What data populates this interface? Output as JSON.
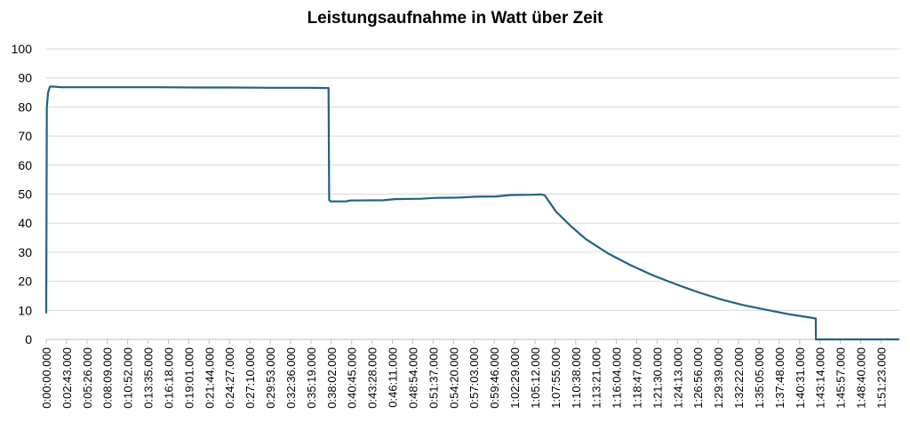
{
  "chart_data": {
    "type": "line",
    "title": "Leistungsaufnahme in Watt über Zeit",
    "xlabel": "",
    "ylabel": "",
    "ylim": [
      0,
      100
    ],
    "yticks": [
      0,
      10,
      20,
      30,
      40,
      50,
      60,
      70,
      80,
      90,
      100
    ],
    "x_tick_labels": [
      "0:00:00.000",
      "0:02:43.000",
      "0:05:26.000",
      "0:08:09.000",
      "0:10:52.000",
      "0:13:35.000",
      "0:16:18.000",
      "0:19:01.000",
      "0:21:44.000",
      "0:24:27.000",
      "0:27:10.000",
      "0:29:53.000",
      "0:32:36.000",
      "0:35:19.000",
      "0:38:02.000",
      "0:40:45.000",
      "0:43:28.000",
      "0:46:11.000",
      "0:48:54.000",
      "0:51:37.000",
      "0:54:20.000",
      "0:57:03.000",
      "0:59:46.000",
      "1:02:29.000",
      "1:05:12.000",
      "1:07:55.000",
      "1:10:38.000",
      "1:13:21.000",
      "1:16:04.000",
      "1:18:47.000",
      "1:21:30.000",
      "1:24:13.000",
      "1:26:56.000",
      "1:29:39.000",
      "1:32:22.000",
      "1:35:05.000",
      "1:37:48.000",
      "1:40:31.000",
      "1:43:14.000",
      "1:45:57.000",
      "1:48:40.000",
      "1:51:23.000"
    ],
    "x_end": "1:53:49.000",
    "grid": true,
    "legend": "none",
    "line_color": "#1f6384",
    "series": [
      {
        "x": [
          "0:00:00.000",
          "0:00:05.000",
          "0:00:15.000",
          "0:00:30.000",
          "0:01:00.000",
          "0:02:00.000",
          "0:05:00.000",
          "0:10:00.000",
          "0:15:00.000",
          "0:20:00.000",
          "0:25:00.000",
          "0:30:00.000",
          "0:35:00.000",
          "0:37:40.000",
          "0:37:45.000",
          "0:37:55.000",
          "0:40:00.000",
          "0:40:30.000",
          "0:45:00.000",
          "0:46:30.000",
          "0:50:00.000",
          "0:51:40.000",
          "0:55:00.000",
          "0:57:20.000",
          "1:00:00.000",
          "1:02:00.000",
          "1:05:00.000",
          "1:06:00.000",
          "1:06:30.000",
          "1:08:00.000",
          "1:10:00.000",
          "1:12:00.000",
          "1:15:00.000",
          "1:18:00.000",
          "1:21:00.000",
          "1:24:00.000",
          "1:27:00.000",
          "1:30:00.000",
          "1:33:00.000",
          "1:36:00.000",
          "1:39:00.000",
          "1:42:00.000",
          "1:42:40.000",
          "1:42:41.000",
          "1:45:00.000",
          "1:50:00.000",
          "1:53:49.000"
        ],
        "values": [
          9,
          80,
          85,
          87,
          87,
          86.8,
          86.8,
          86.8,
          86.8,
          86.7,
          86.7,
          86.6,
          86.6,
          86.5,
          48,
          47.5,
          47.5,
          47.8,
          47.9,
          48.3,
          48.4,
          48.7,
          48.8,
          49.1,
          49.2,
          49.7,
          49.8,
          49.9,
          49.6,
          44,
          39,
          34.5,
          29.5,
          25.5,
          22,
          19,
          16.2,
          13.8,
          11.8,
          10.2,
          8.7,
          7.5,
          7.2,
          0,
          0,
          0,
          0
        ]
      }
    ]
  }
}
